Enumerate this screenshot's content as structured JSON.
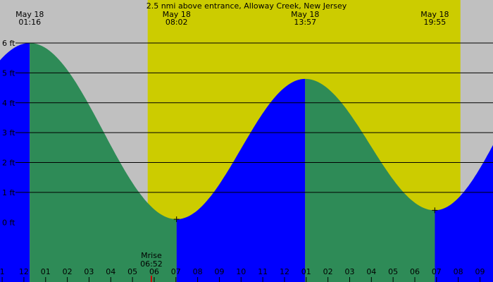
{
  "chart_data": {
    "type": "area",
    "title": "2.5 nmi above entrance, Alloway Creek, New Jersey",
    "xlabel": "",
    "ylabel": "",
    "y_unit": "ft",
    "ylim": [
      -2.0,
      6.0
    ],
    "ytick_labels": [
      "6 ft",
      "5 ft",
      "4 ft",
      "3 ft",
      "2 ft",
      "1 ft",
      "0 ft"
    ],
    "ytick_values": [
      6,
      5,
      4,
      3,
      2,
      1,
      0
    ],
    "x_range_hours": [
      -0.1,
      22.6
    ],
    "xtick_labels": [
      "1",
      "12",
      "01",
      "02",
      "03",
      "04",
      "05",
      "06",
      "07",
      "08",
      "09",
      "10",
      "11",
      "12",
      "01",
      "02",
      "03",
      "04",
      "05",
      "06",
      "07",
      "08",
      "09"
    ],
    "xtick_hours": [
      0,
      1,
      2,
      3,
      4,
      5,
      6,
      7,
      8,
      9,
      10,
      11,
      12,
      13,
      14,
      15,
      16,
      17,
      18,
      19,
      20,
      21,
      22
    ],
    "daylight_hours": [
      6.7,
      21.1
    ],
    "grid": true,
    "tide_events": [
      {
        "date": "May 18",
        "time": "01:16",
        "hour": 1.27,
        "height": 6.0,
        "kind": "high"
      },
      {
        "date": "May 18",
        "time": "08:02",
        "hour": 8.03,
        "height": 0.1,
        "kind": "low"
      },
      {
        "date": "May 18",
        "time": "13:57",
        "hour": 13.95,
        "height": 4.8,
        "kind": "high"
      },
      {
        "date": "May 18",
        "time": "19:55",
        "hour": 19.92,
        "height": 0.4,
        "kind": "low"
      }
    ],
    "extra_points": [
      {
        "hour": -0.1,
        "height": 4.6
      },
      {
        "hour": 22.6,
        "height": 1.65
      }
    ],
    "moonrise": {
      "label": "Mrise",
      "time": "06:52",
      "hour": 6.87
    },
    "colors": {
      "background": "#c0c0c0",
      "daylight": "#cccc00",
      "rising": "#0000ff",
      "falling": "#2e8b57",
      "gridline": "#000000",
      "moon_marker": "#cc0000"
    }
  }
}
